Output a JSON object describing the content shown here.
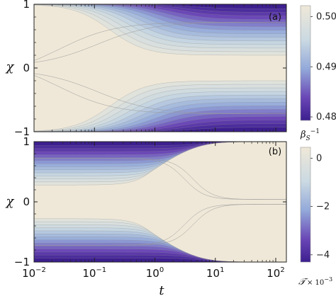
{
  "chart_data": [
    {
      "type": "heatmap",
      "panel_label": "(a)",
      "xlabel": "t",
      "ylabel": "χ",
      "x_scale": "log",
      "xlim": [
        0.01,
        150
      ],
      "ylim": [
        -1,
        1
      ],
      "y_ticks": [
        "1",
        "0",
        "−1"
      ],
      "colorbar": {
        "label": "β_S^{-1}",
        "range": [
          0.48,
          0.5
        ],
        "ticks": [
          "0.50",
          "0.49",
          "0.48"
        ],
        "colors": [
          "#efe8d8",
          "#b2cbe0",
          "#3d1f8f"
        ]
      }
    },
    {
      "type": "heatmap",
      "panel_label": "(b)",
      "xlabel": "t",
      "ylabel": "χ",
      "x_scale": "log",
      "xlim": [
        0.01,
        150
      ],
      "ylim": [
        -1,
        1
      ],
      "x_ticks": [
        "10",
        "10",
        "10",
        "10",
        "10"
      ],
      "x_tick_exponents": [
        "−2",
        "−1",
        "0",
        "1",
        "2"
      ],
      "y_ticks": [
        "1",
        "0",
        "−1"
      ],
      "colorbar": {
        "label_main": "𝒯",
        "label_scale": "× 10",
        "label_exponent": "−3",
        "range": [
          -4.3,
          0
        ],
        "ticks": [
          "0",
          "−2",
          "−4"
        ],
        "colors": [
          "#efe8d8",
          "#b2cbe0",
          "#3d1f8f"
        ]
      }
    }
  ]
}
